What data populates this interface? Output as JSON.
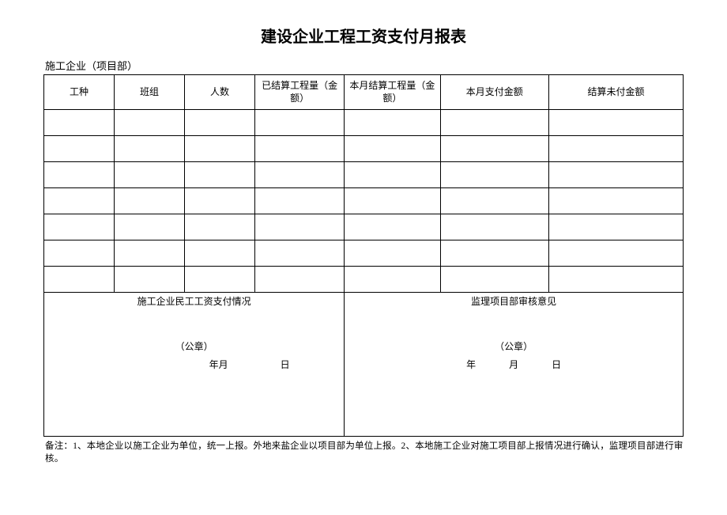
{
  "title": "建设企业工程工资支付月报表",
  "subtitle": "施工企业（项目部）",
  "columns": [
    "工种",
    "班组",
    "人数",
    "已结算工程量（金额）",
    "本月结算工程量（金额）",
    "本月支付金额",
    "结算未付金额"
  ],
  "data_row_count": 7,
  "signature_left": {
    "header": "施工企业民工工资支付情况",
    "seal": "（公章）",
    "year_month": "年月",
    "day": "日"
  },
  "signature_right": {
    "header": "监理项目部审核意见",
    "seal": "（公章）",
    "year": "年",
    "month": "月",
    "day": "日"
  },
  "footnote": "备注：1、本地企业以施工企业为单位，统一上报。外地来盐企业以项目部为单位上报。2、本地施工企业对施工项目部上报情况进行确认，监理项目部进行审核。",
  "styles": {
    "page_bg": "#ffffff",
    "text_color": "#000000",
    "border_color": "#000000",
    "title_fontsize": 20,
    "body_fontsize": 12,
    "footnote_fontsize": 11.5,
    "header_row_height": 44,
    "data_row_height": 33
  }
}
